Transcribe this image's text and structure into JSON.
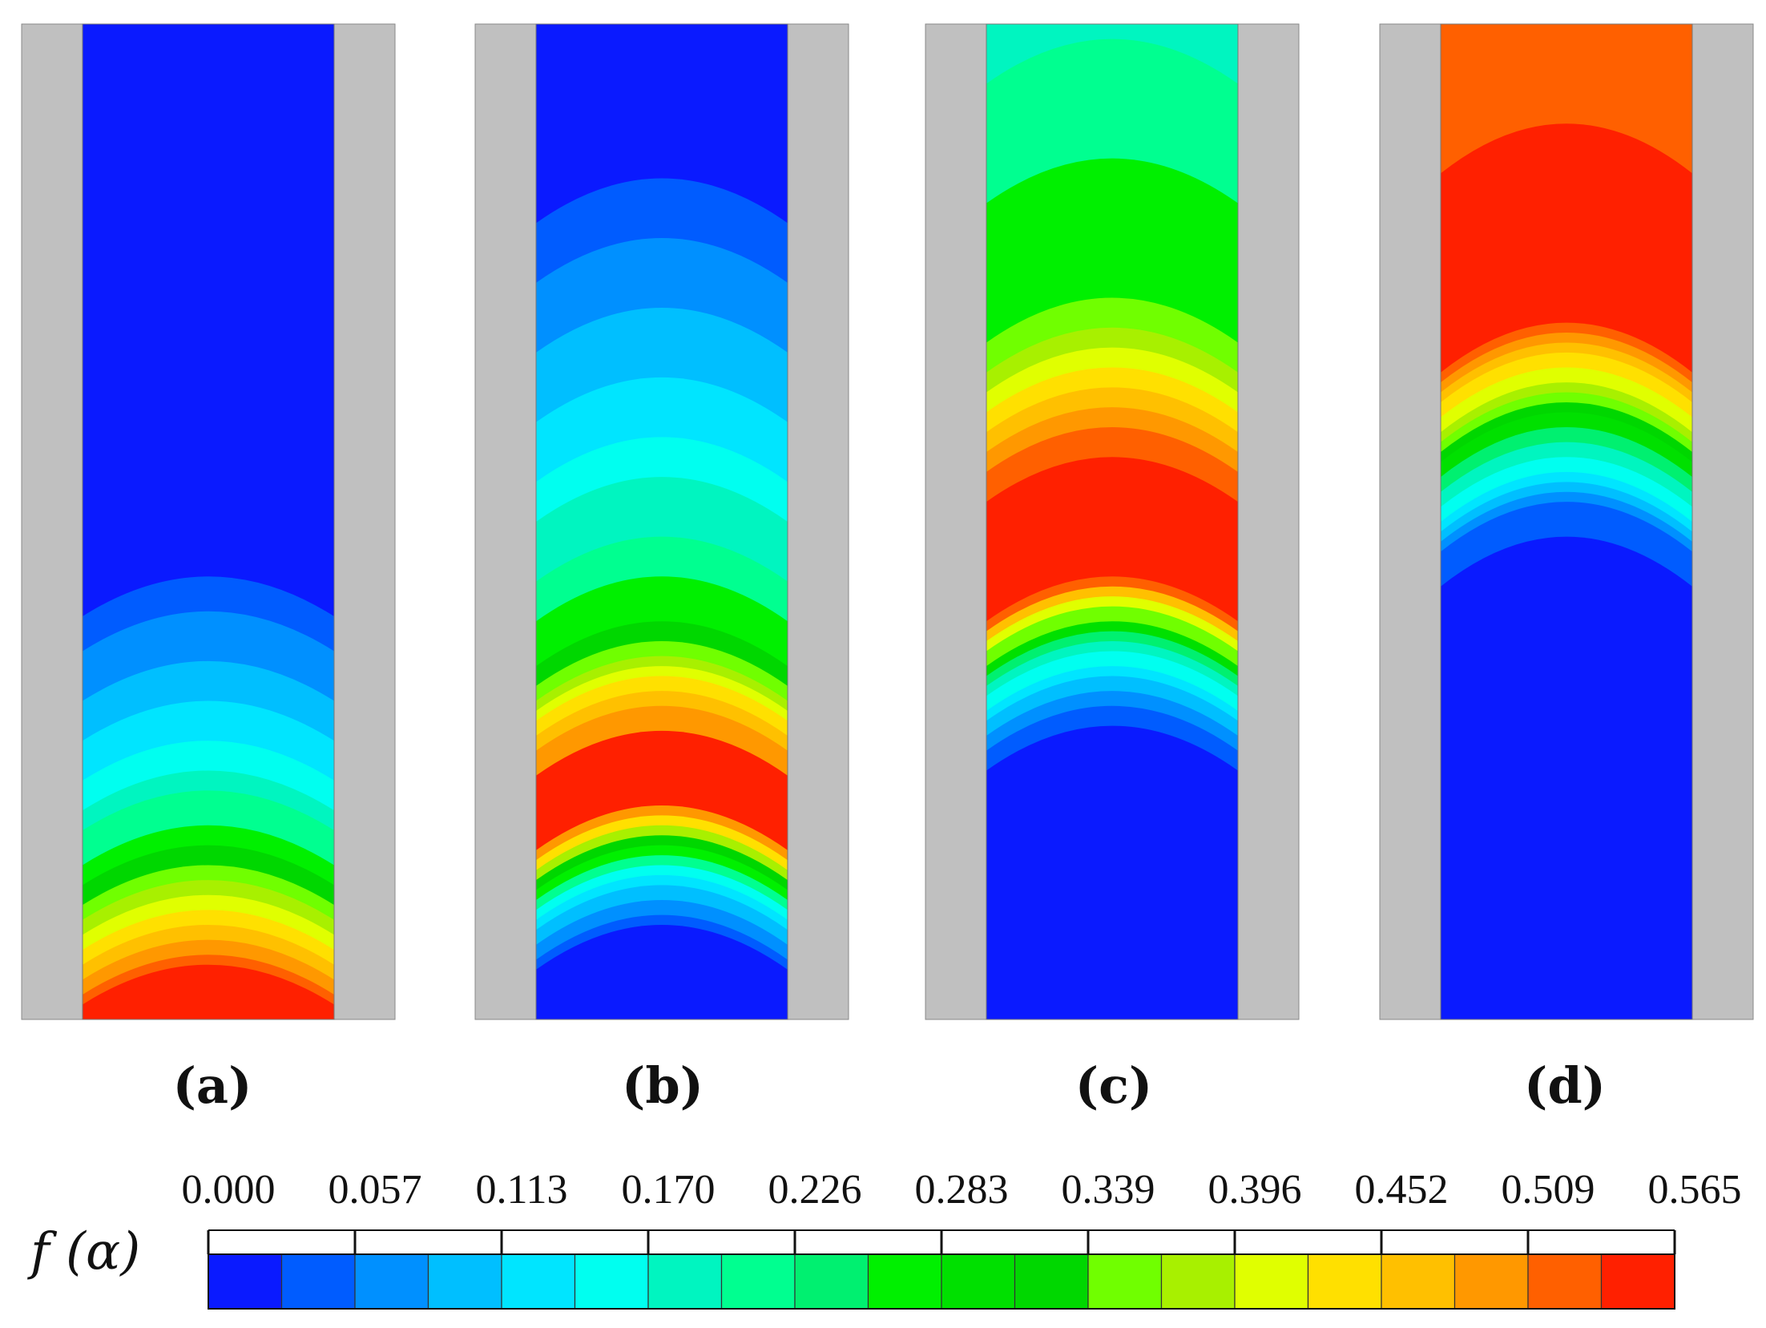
{
  "figure": {
    "panel_labels": [
      "(a)",
      "(b)",
      "(c)",
      "(d)"
    ],
    "colorbar": {
      "title": "f (α)",
      "tick_labels": [
        "0.000",
        "0.057",
        "0.113",
        "0.170",
        "0.226",
        "0.283",
        "0.339",
        "0.396",
        "0.452",
        "0.509",
        "0.565"
      ],
      "min": 0.0,
      "max": 0.565,
      "levels": 20,
      "colors": [
        "#0a1aff",
        "#005cff",
        "#0090ff",
        "#00bfff",
        "#00e5ff",
        "#00fff0",
        "#00f5c0",
        "#00ff90",
        "#00f070",
        "#00f000",
        "#00e000",
        "#00d700",
        "#70ff00",
        "#a8f000",
        "#e0ff00",
        "#ffe000",
        "#ffc000",
        "#ff9800",
        "#ff6000",
        "#ff2000"
      ]
    },
    "wall_color": "#c0c0c0",
    "panels": [
      {
        "id": "a",
        "note": "front near bottom, peak at bottom center"
      },
      {
        "id": "b",
        "note": "band near lower third"
      },
      {
        "id": "c",
        "note": "band at middle"
      },
      {
        "id": "d",
        "note": "band in upper part"
      }
    ]
  }
}
